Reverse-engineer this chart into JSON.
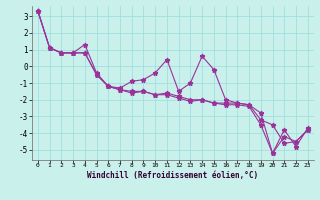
{
  "xlabel": "Windchill (Refroidissement éolien,°C)",
  "background_color": "#caf0ec",
  "grid_color": "#99dddd",
  "line_color": "#993399",
  "xlim": [
    -0.5,
    23.5
  ],
  "ylim": [
    -5.6,
    3.6
  ],
  "yticks": [
    -5,
    -4,
    -3,
    -2,
    -1,
    0,
    1,
    2,
    3
  ],
  "xticks": [
    0,
    1,
    2,
    3,
    4,
    5,
    6,
    7,
    8,
    9,
    10,
    11,
    12,
    13,
    14,
    15,
    16,
    17,
    18,
    19,
    20,
    21,
    22,
    23
  ],
  "series": [
    [
      3.3,
      1.1,
      0.8,
      0.8,
      1.3,
      -0.4,
      -1.2,
      -1.3,
      -0.9,
      -0.8,
      -0.4,
      0.4,
      -1.5,
      -1.0,
      0.6,
      -0.2,
      -2.0,
      -2.2,
      -2.3,
      -2.8,
      -5.2,
      -3.8,
      -4.8,
      -3.7
    ],
    [
      3.3,
      1.1,
      0.8,
      0.8,
      0.8,
      -0.5,
      -1.2,
      -1.4,
      -1.5,
      -1.5,
      -1.7,
      -1.6,
      -1.8,
      -2.0,
      -2.0,
      -2.2,
      -2.2,
      -2.2,
      -2.3,
      -3.2,
      -3.5,
      -4.6,
      -4.5,
      -3.8
    ],
    [
      3.3,
      1.1,
      0.8,
      0.8,
      0.8,
      -0.5,
      -1.2,
      -1.4,
      -1.6,
      -1.5,
      -1.7,
      -1.7,
      -1.9,
      -2.1,
      -2.0,
      -2.2,
      -2.3,
      -2.3,
      -2.4,
      -3.5,
      -5.2,
      -4.2,
      -4.5,
      -3.8
    ]
  ]
}
